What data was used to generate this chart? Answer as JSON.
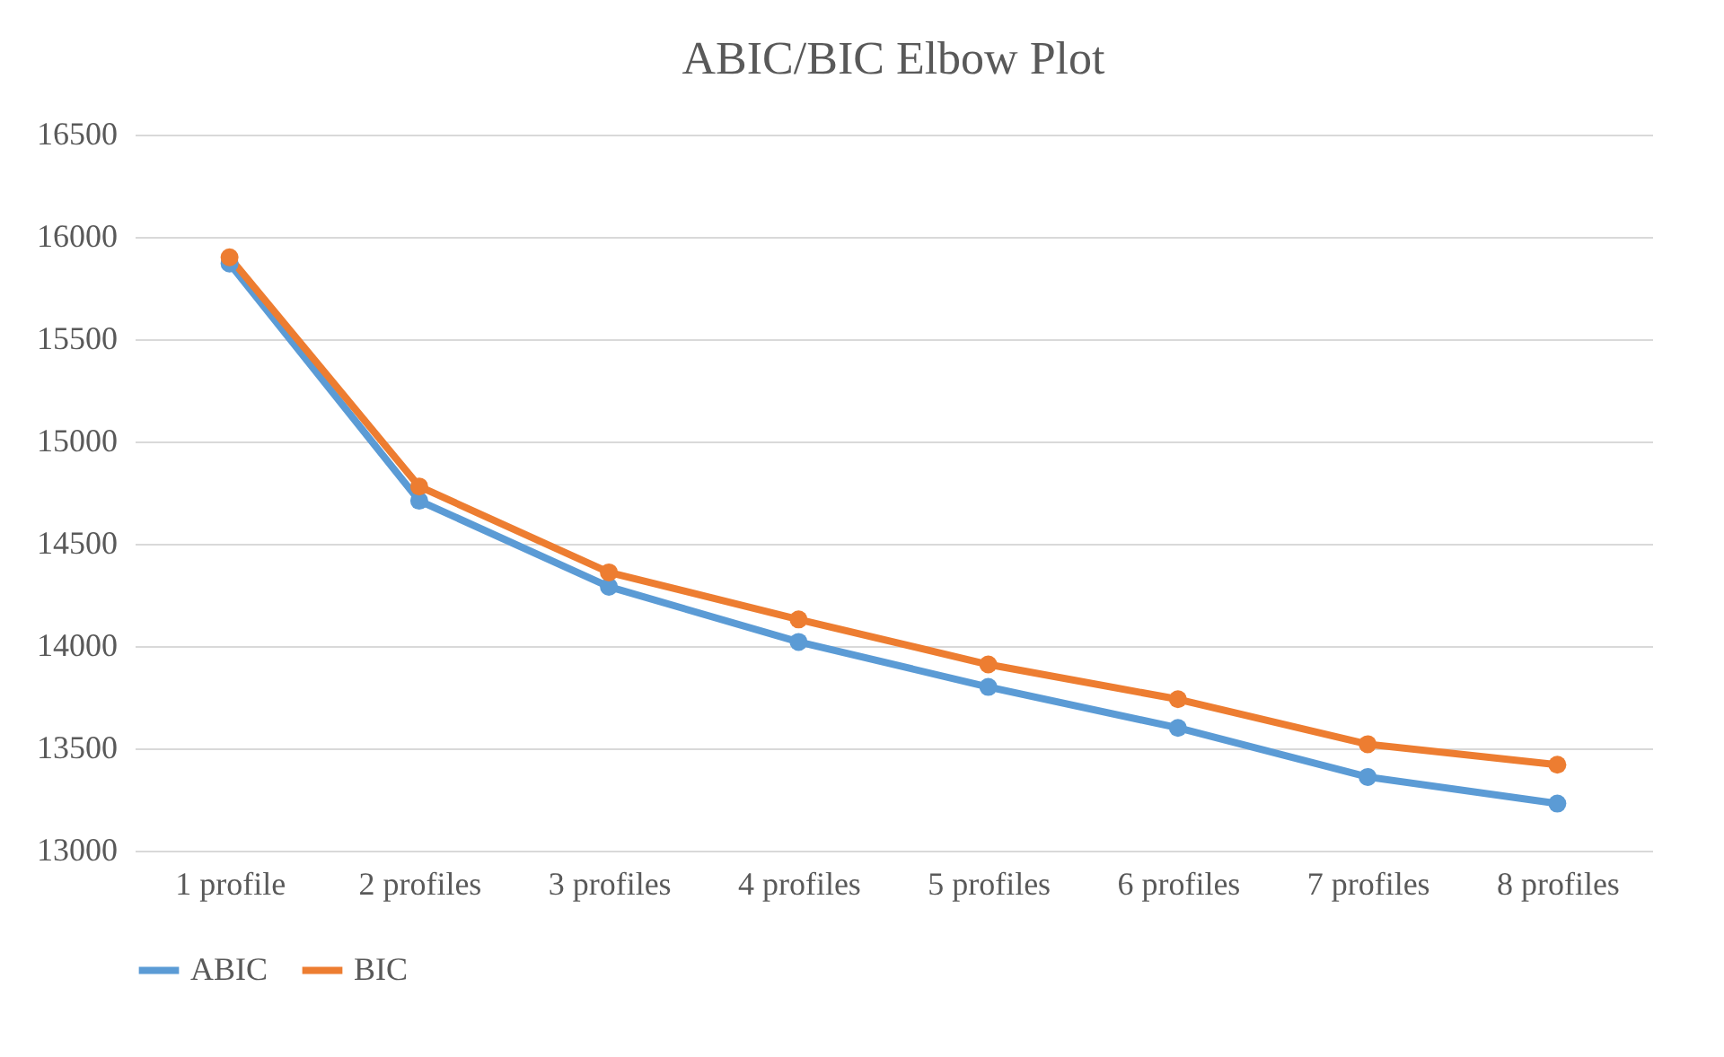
{
  "chart_data": {
    "type": "line",
    "title": "ABIC/BIC Elbow Plot",
    "categories": [
      "1 profile",
      "2 profiles",
      "3 profiles",
      "4 profiles",
      "5 profiles",
      "6 profiles",
      "7 profiles",
      "8 profiles"
    ],
    "series": [
      {
        "name": "ABIC",
        "color": "#5b9bd5",
        "values": [
          15870,
          14710,
          14290,
          14020,
          13800,
          13600,
          13360,
          13230
        ]
      },
      {
        "name": "BIC",
        "color": "#ed7d31",
        "values": [
          15900,
          14780,
          14360,
          14130,
          13910,
          13740,
          13520,
          13420
        ]
      }
    ],
    "ylim": [
      13000,
      16500
    ],
    "yticks": [
      13000,
      13500,
      14000,
      14500,
      15000,
      15500,
      16000,
      16500
    ],
    "grid": "y",
    "legend": "bottom",
    "marker": "circle",
    "line_style": "solid"
  }
}
